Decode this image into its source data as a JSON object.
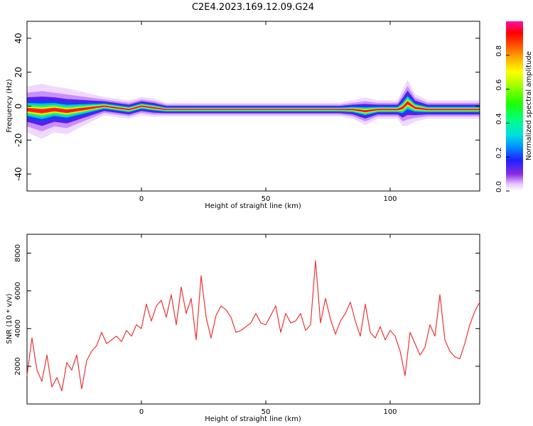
{
  "figure": {
    "title": "C2E4.2023.169.12.09.G24"
  },
  "chart_data": [
    {
      "type": "heatmap",
      "title": "C2E4.2023.169.12.09.G24",
      "xlabel": "Height of straight line (km)",
      "ylabel": "Frequency (Hz)",
      "xlim": [
        -46,
        136
      ],
      "ylim": [
        -50,
        50
      ],
      "x_ticks": [
        "0",
        "50",
        "100"
      ],
      "x_tick_values": [
        0,
        50,
        100
      ],
      "y_ticks": [
        "40",
        "20",
        "0",
        "-20",
        "-40"
      ],
      "y_tick_values": [
        40,
        20,
        0,
        -20,
        -40
      ],
      "colorbar": {
        "label": "Normalized spectral amplitude",
        "ticks": [
          "0.0",
          "0.2",
          "0.4",
          "0.6",
          "0.8"
        ],
        "tick_values": [
          0.0,
          0.2,
          0.4,
          0.6,
          0.8
        ],
        "range": [
          0,
          1
        ],
        "colormap": "gist_ncar-like (white-purple-blue-cyan-green-yellow-orange-red-magenta)"
      },
      "ridge": {
        "description": "Spectral peak frequency along height",
        "x": [
          -46,
          -40,
          -35,
          -30,
          -25,
          -20,
          -15,
          -10,
          -5,
          0,
          5,
          10,
          20,
          30,
          40,
          50,
          60,
          70,
          80,
          85,
          90,
          95,
          100,
          103,
          105,
          107,
          110,
          115,
          120,
          130,
          136
        ],
        "y": [
          -2,
          -3,
          -2,
          -3,
          -2,
          -1,
          0,
          -1,
          -2,
          0,
          -1,
          -2,
          -2,
          -2,
          -2,
          -2,
          -2,
          -2,
          -2,
          -2,
          -3,
          -2,
          -2,
          -2,
          -1,
          2,
          -1,
          -2,
          -2,
          -2,
          -2
        ],
        "spread_hz": [
          5,
          6,
          5,
          5,
          4,
          3,
          2,
          2,
          2,
          2,
          2,
          1.5,
          1.5,
          1.5,
          1.5,
          1.5,
          1.5,
          1.5,
          1.5,
          2,
          3,
          2,
          2,
          2,
          4,
          5,
          3,
          2,
          2,
          2,
          2
        ]
      },
      "grid": false
    },
    {
      "type": "line",
      "xlabel": "Height of straight line (km)",
      "ylabel": "SNR (10 * v/v)",
      "xlim": [
        -46,
        136
      ],
      "ylim": [
        0,
        9000
      ],
      "x_ticks": [
        "0",
        "50",
        "100"
      ],
      "x_tick_values": [
        0,
        50,
        100
      ],
      "y_ticks": [
        "8000",
        "6000",
        "4000",
        "2000"
      ],
      "y_tick_values": [
        8000,
        6000,
        4000,
        2000
      ],
      "series": [
        {
          "color": "#ee3333",
          "x": [
            -46,
            -44,
            -42,
            -40,
            -38,
            -36,
            -34,
            -32,
            -30,
            -28,
            -26,
            -24,
            -22,
            -20,
            -18,
            -16,
            -14,
            -12,
            -10,
            -8,
            -6,
            -4,
            -2,
            0,
            2,
            4,
            6,
            8,
            10,
            12,
            14,
            16,
            18,
            20,
            22,
            24,
            26,
            28,
            30,
            32,
            34,
            36,
            38,
            40,
            42,
            44,
            46,
            48,
            50,
            52,
            54,
            56,
            58,
            60,
            62,
            64,
            66,
            68,
            70,
            72,
            74,
            76,
            78,
            80,
            82,
            84,
            86,
            88,
            90,
            92,
            94,
            96,
            98,
            100,
            102,
            104,
            106,
            108,
            110,
            112,
            114,
            116,
            118,
            120,
            122,
            124,
            126,
            128,
            130,
            132,
            134,
            136
          ],
          "values": [
            1500,
            3500,
            1800,
            1200,
            2600,
            900,
            1400,
            700,
            2200,
            1800,
            2600,
            800,
            2300,
            2800,
            3100,
            3800,
            3200,
            3400,
            3600,
            3300,
            3900,
            3600,
            4200,
            4000,
            5300,
            4400,
            5200,
            5500,
            4600,
            5800,
            4200,
            6200,
            4800,
            5600,
            3400,
            6800,
            4600,
            3500,
            4700,
            5200,
            5000,
            4600,
            3800,
            3900,
            4100,
            4300,
            4800,
            4300,
            4200,
            4700,
            5200,
            3800,
            4800,
            4300,
            4400,
            4800,
            3900,
            4200,
            7600,
            4300,
            5600,
            4500,
            3700,
            4400,
            4800,
            5400,
            4400,
            3600,
            5300,
            3800,
            3500,
            4100,
            3400,
            3900,
            3600,
            2800,
            1500,
            3800,
            3200,
            2600,
            3000,
            4200,
            3600,
            5800,
            3400,
            2800,
            2500,
            2400,
            3200,
            4200,
            4900,
            5400
          ]
        }
      ],
      "grid": false
    }
  ]
}
